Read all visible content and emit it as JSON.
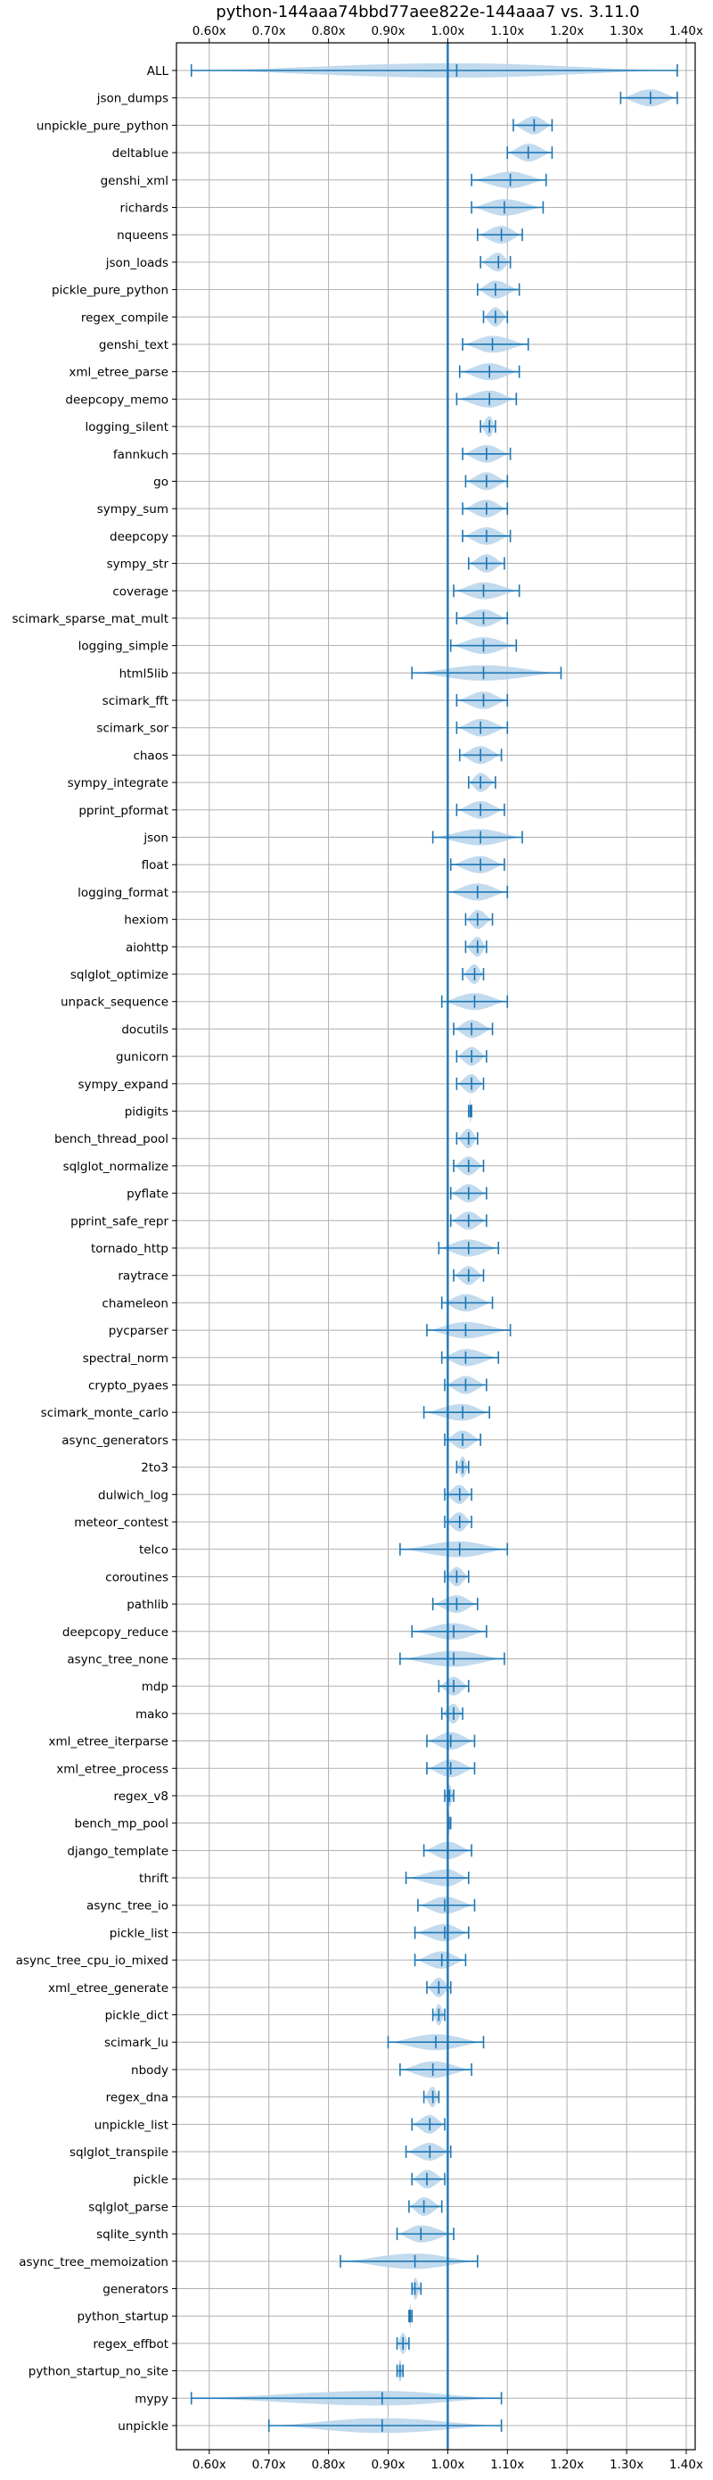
{
  "colors": {
    "accent": "#1f77b4",
    "violin_fill": "#b7d3ea",
    "grid": "#b0b0b0",
    "axis": "#000000",
    "background": "#ffffff"
  },
  "chart_data": {
    "type": "violin",
    "title": "python-144aaa74bbd77aee822e-144aaa7 vs. 3.11.0",
    "xlabel": "",
    "ylabel": "",
    "xlim": [
      0.545,
      1.415
    ],
    "x_ticks": [
      0.6,
      0.7,
      0.8,
      0.9,
      1.0,
      1.1,
      1.2,
      1.3,
      1.4
    ],
    "x_tick_labels": [
      "0.60x",
      "0.70x",
      "0.80x",
      "0.90x",
      "1.00x",
      "1.10x",
      "1.20x",
      "1.30x",
      "1.40x"
    ],
    "reference_line": 1.0,
    "grid": true,
    "tick_labels_top_and_bottom": true,
    "benchmarks": [
      {
        "name": "ALL",
        "min": 0.57,
        "max": 1.385,
        "mean": 1.015
      },
      {
        "name": "json_dumps",
        "min": 1.29,
        "max": 1.385,
        "mean": 1.34
      },
      {
        "name": "unpickle_pure_python",
        "min": 1.11,
        "max": 1.175,
        "mean": 1.145
      },
      {
        "name": "deltablue",
        "min": 1.1,
        "max": 1.175,
        "mean": 1.135
      },
      {
        "name": "genshi_xml",
        "min": 1.04,
        "max": 1.165,
        "mean": 1.105
      },
      {
        "name": "richards",
        "min": 1.04,
        "max": 1.16,
        "mean": 1.095
      },
      {
        "name": "nqueens",
        "min": 1.05,
        "max": 1.125,
        "mean": 1.09
      },
      {
        "name": "json_loads",
        "min": 1.055,
        "max": 1.105,
        "mean": 1.085
      },
      {
        "name": "pickle_pure_python",
        "min": 1.05,
        "max": 1.12,
        "mean": 1.08
      },
      {
        "name": "regex_compile",
        "min": 1.06,
        "max": 1.1,
        "mean": 1.08
      },
      {
        "name": "genshi_text",
        "min": 1.025,
        "max": 1.135,
        "mean": 1.075
      },
      {
        "name": "xml_etree_parse",
        "min": 1.02,
        "max": 1.12,
        "mean": 1.07
      },
      {
        "name": "deepcopy_memo",
        "min": 1.015,
        "max": 1.115,
        "mean": 1.07
      },
      {
        "name": "logging_silent",
        "min": 1.055,
        "max": 1.08,
        "mean": 1.07
      },
      {
        "name": "fannkuch",
        "min": 1.025,
        "max": 1.105,
        "mean": 1.065
      },
      {
        "name": "go",
        "min": 1.03,
        "max": 1.1,
        "mean": 1.065
      },
      {
        "name": "sympy_sum",
        "min": 1.025,
        "max": 1.1,
        "mean": 1.065
      },
      {
        "name": "deepcopy",
        "min": 1.025,
        "max": 1.105,
        "mean": 1.065
      },
      {
        "name": "sympy_str",
        "min": 1.035,
        "max": 1.095,
        "mean": 1.065
      },
      {
        "name": "coverage",
        "min": 1.01,
        "max": 1.12,
        "mean": 1.06
      },
      {
        "name": "scimark_sparse_mat_mult",
        "min": 1.015,
        "max": 1.1,
        "mean": 1.06
      },
      {
        "name": "logging_simple",
        "min": 1.005,
        "max": 1.115,
        "mean": 1.06
      },
      {
        "name": "html5lib",
        "min": 0.94,
        "max": 1.19,
        "mean": 1.06
      },
      {
        "name": "scimark_fft",
        "min": 1.015,
        "max": 1.1,
        "mean": 1.06
      },
      {
        "name": "scimark_sor",
        "min": 1.015,
        "max": 1.1,
        "mean": 1.055
      },
      {
        "name": "chaos",
        "min": 1.02,
        "max": 1.09,
        "mean": 1.055
      },
      {
        "name": "sympy_integrate",
        "min": 1.035,
        "max": 1.08,
        "mean": 1.055
      },
      {
        "name": "pprint_pformat",
        "min": 1.015,
        "max": 1.095,
        "mean": 1.055
      },
      {
        "name": "json",
        "min": 0.975,
        "max": 1.125,
        "mean": 1.055
      },
      {
        "name": "float",
        "min": 1.005,
        "max": 1.095,
        "mean": 1.055
      },
      {
        "name": "logging_format",
        "min": 1.0,
        "max": 1.1,
        "mean": 1.05
      },
      {
        "name": "hexiom",
        "min": 1.03,
        "max": 1.075,
        "mean": 1.05
      },
      {
        "name": "aiohttp",
        "min": 1.03,
        "max": 1.065,
        "mean": 1.05
      },
      {
        "name": "sqlglot_optimize",
        "min": 1.025,
        "max": 1.06,
        "mean": 1.045
      },
      {
        "name": "unpack_sequence",
        "min": 0.99,
        "max": 1.1,
        "mean": 1.045
      },
      {
        "name": "docutils",
        "min": 1.01,
        "max": 1.075,
        "mean": 1.04
      },
      {
        "name": "gunicorn",
        "min": 1.015,
        "max": 1.065,
        "mean": 1.04
      },
      {
        "name": "sympy_expand",
        "min": 1.015,
        "max": 1.06,
        "mean": 1.04
      },
      {
        "name": "pidigits",
        "min": 1.035,
        "max": 1.04,
        "mean": 1.038
      },
      {
        "name": "bench_thread_pool",
        "min": 1.015,
        "max": 1.05,
        "mean": 1.035
      },
      {
        "name": "sqlglot_normalize",
        "min": 1.01,
        "max": 1.06,
        "mean": 1.035
      },
      {
        "name": "pyflate",
        "min": 1.005,
        "max": 1.065,
        "mean": 1.035
      },
      {
        "name": "pprint_safe_repr",
        "min": 1.005,
        "max": 1.065,
        "mean": 1.035
      },
      {
        "name": "tornado_http",
        "min": 0.985,
        "max": 1.085,
        "mean": 1.035
      },
      {
        "name": "raytrace",
        "min": 1.01,
        "max": 1.06,
        "mean": 1.035
      },
      {
        "name": "chameleon",
        "min": 0.99,
        "max": 1.075,
        "mean": 1.03
      },
      {
        "name": "pycparser",
        "min": 0.965,
        "max": 1.105,
        "mean": 1.03
      },
      {
        "name": "spectral_norm",
        "min": 0.99,
        "max": 1.085,
        "mean": 1.03
      },
      {
        "name": "crypto_pyaes",
        "min": 0.995,
        "max": 1.065,
        "mean": 1.03
      },
      {
        "name": "scimark_monte_carlo",
        "min": 0.96,
        "max": 1.07,
        "mean": 1.025
      },
      {
        "name": "async_generators",
        "min": 0.995,
        "max": 1.055,
        "mean": 1.025
      },
      {
        "name": "2to3",
        "min": 1.015,
        "max": 1.035,
        "mean": 1.025
      },
      {
        "name": "dulwich_log",
        "min": 0.995,
        "max": 1.04,
        "mean": 1.02
      },
      {
        "name": "meteor_contest",
        "min": 0.995,
        "max": 1.04,
        "mean": 1.02
      },
      {
        "name": "telco",
        "min": 0.92,
        "max": 1.1,
        "mean": 1.02
      },
      {
        "name": "coroutines",
        "min": 0.995,
        "max": 1.035,
        "mean": 1.015
      },
      {
        "name": "pathlib",
        "min": 0.975,
        "max": 1.05,
        "mean": 1.015
      },
      {
        "name": "deepcopy_reduce",
        "min": 0.94,
        "max": 1.065,
        "mean": 1.01
      },
      {
        "name": "async_tree_none",
        "min": 0.92,
        "max": 1.095,
        "mean": 1.01
      },
      {
        "name": "mdp",
        "min": 0.985,
        "max": 1.035,
        "mean": 1.01
      },
      {
        "name": "mako",
        "min": 0.99,
        "max": 1.025,
        "mean": 1.01
      },
      {
        "name": "xml_etree_iterparse",
        "min": 0.965,
        "max": 1.045,
        "mean": 1.005
      },
      {
        "name": "xml_etree_process",
        "min": 0.965,
        "max": 1.045,
        "mean": 1.005
      },
      {
        "name": "regex_v8",
        "min": 0.995,
        "max": 1.01,
        "mean": 1.003
      },
      {
        "name": "bench_mp_pool",
        "min": 1.0,
        "max": 1.005,
        "mean": 1.002
      },
      {
        "name": "django_template",
        "min": 0.96,
        "max": 1.04,
        "mean": 1.0
      },
      {
        "name": "thrift",
        "min": 0.93,
        "max": 1.035,
        "mean": 1.0
      },
      {
        "name": "async_tree_io",
        "min": 0.95,
        "max": 1.045,
        "mean": 0.995
      },
      {
        "name": "pickle_list",
        "min": 0.945,
        "max": 1.035,
        "mean": 0.995
      },
      {
        "name": "async_tree_cpu_io_mixed",
        "min": 0.945,
        "max": 1.03,
        "mean": 0.99
      },
      {
        "name": "xml_etree_generate",
        "min": 0.965,
        "max": 1.005,
        "mean": 0.985
      },
      {
        "name": "pickle_dict",
        "min": 0.975,
        "max": 0.995,
        "mean": 0.985
      },
      {
        "name": "scimark_lu",
        "min": 0.9,
        "max": 1.06,
        "mean": 0.98
      },
      {
        "name": "nbody",
        "min": 0.92,
        "max": 1.04,
        "mean": 0.975
      },
      {
        "name": "regex_dna",
        "min": 0.96,
        "max": 0.985,
        "mean": 0.975
      },
      {
        "name": "unpickle_list",
        "min": 0.94,
        "max": 0.995,
        "mean": 0.97
      },
      {
        "name": "sqlglot_transpile",
        "min": 0.93,
        "max": 1.005,
        "mean": 0.97
      },
      {
        "name": "pickle",
        "min": 0.94,
        "max": 0.995,
        "mean": 0.965
      },
      {
        "name": "sqlglot_parse",
        "min": 0.935,
        "max": 0.99,
        "mean": 0.96
      },
      {
        "name": "sqlite_synth",
        "min": 0.915,
        "max": 1.01,
        "mean": 0.955
      },
      {
        "name": "async_tree_memoization",
        "min": 0.82,
        "max": 1.05,
        "mean": 0.945
      },
      {
        "name": "generators",
        "min": 0.94,
        "max": 0.955,
        "mean": 0.945
      },
      {
        "name": "python_startup",
        "min": 0.935,
        "max": 0.94,
        "mean": 0.937
      },
      {
        "name": "regex_effbot",
        "min": 0.915,
        "max": 0.935,
        "mean": 0.925
      },
      {
        "name": "python_startup_no_site",
        "min": 0.915,
        "max": 0.925,
        "mean": 0.92
      },
      {
        "name": "mypy",
        "min": 0.57,
        "max": 1.09,
        "mean": 0.89
      },
      {
        "name": "unpickle",
        "min": 0.7,
        "max": 1.09,
        "mean": 0.89
      }
    ]
  }
}
